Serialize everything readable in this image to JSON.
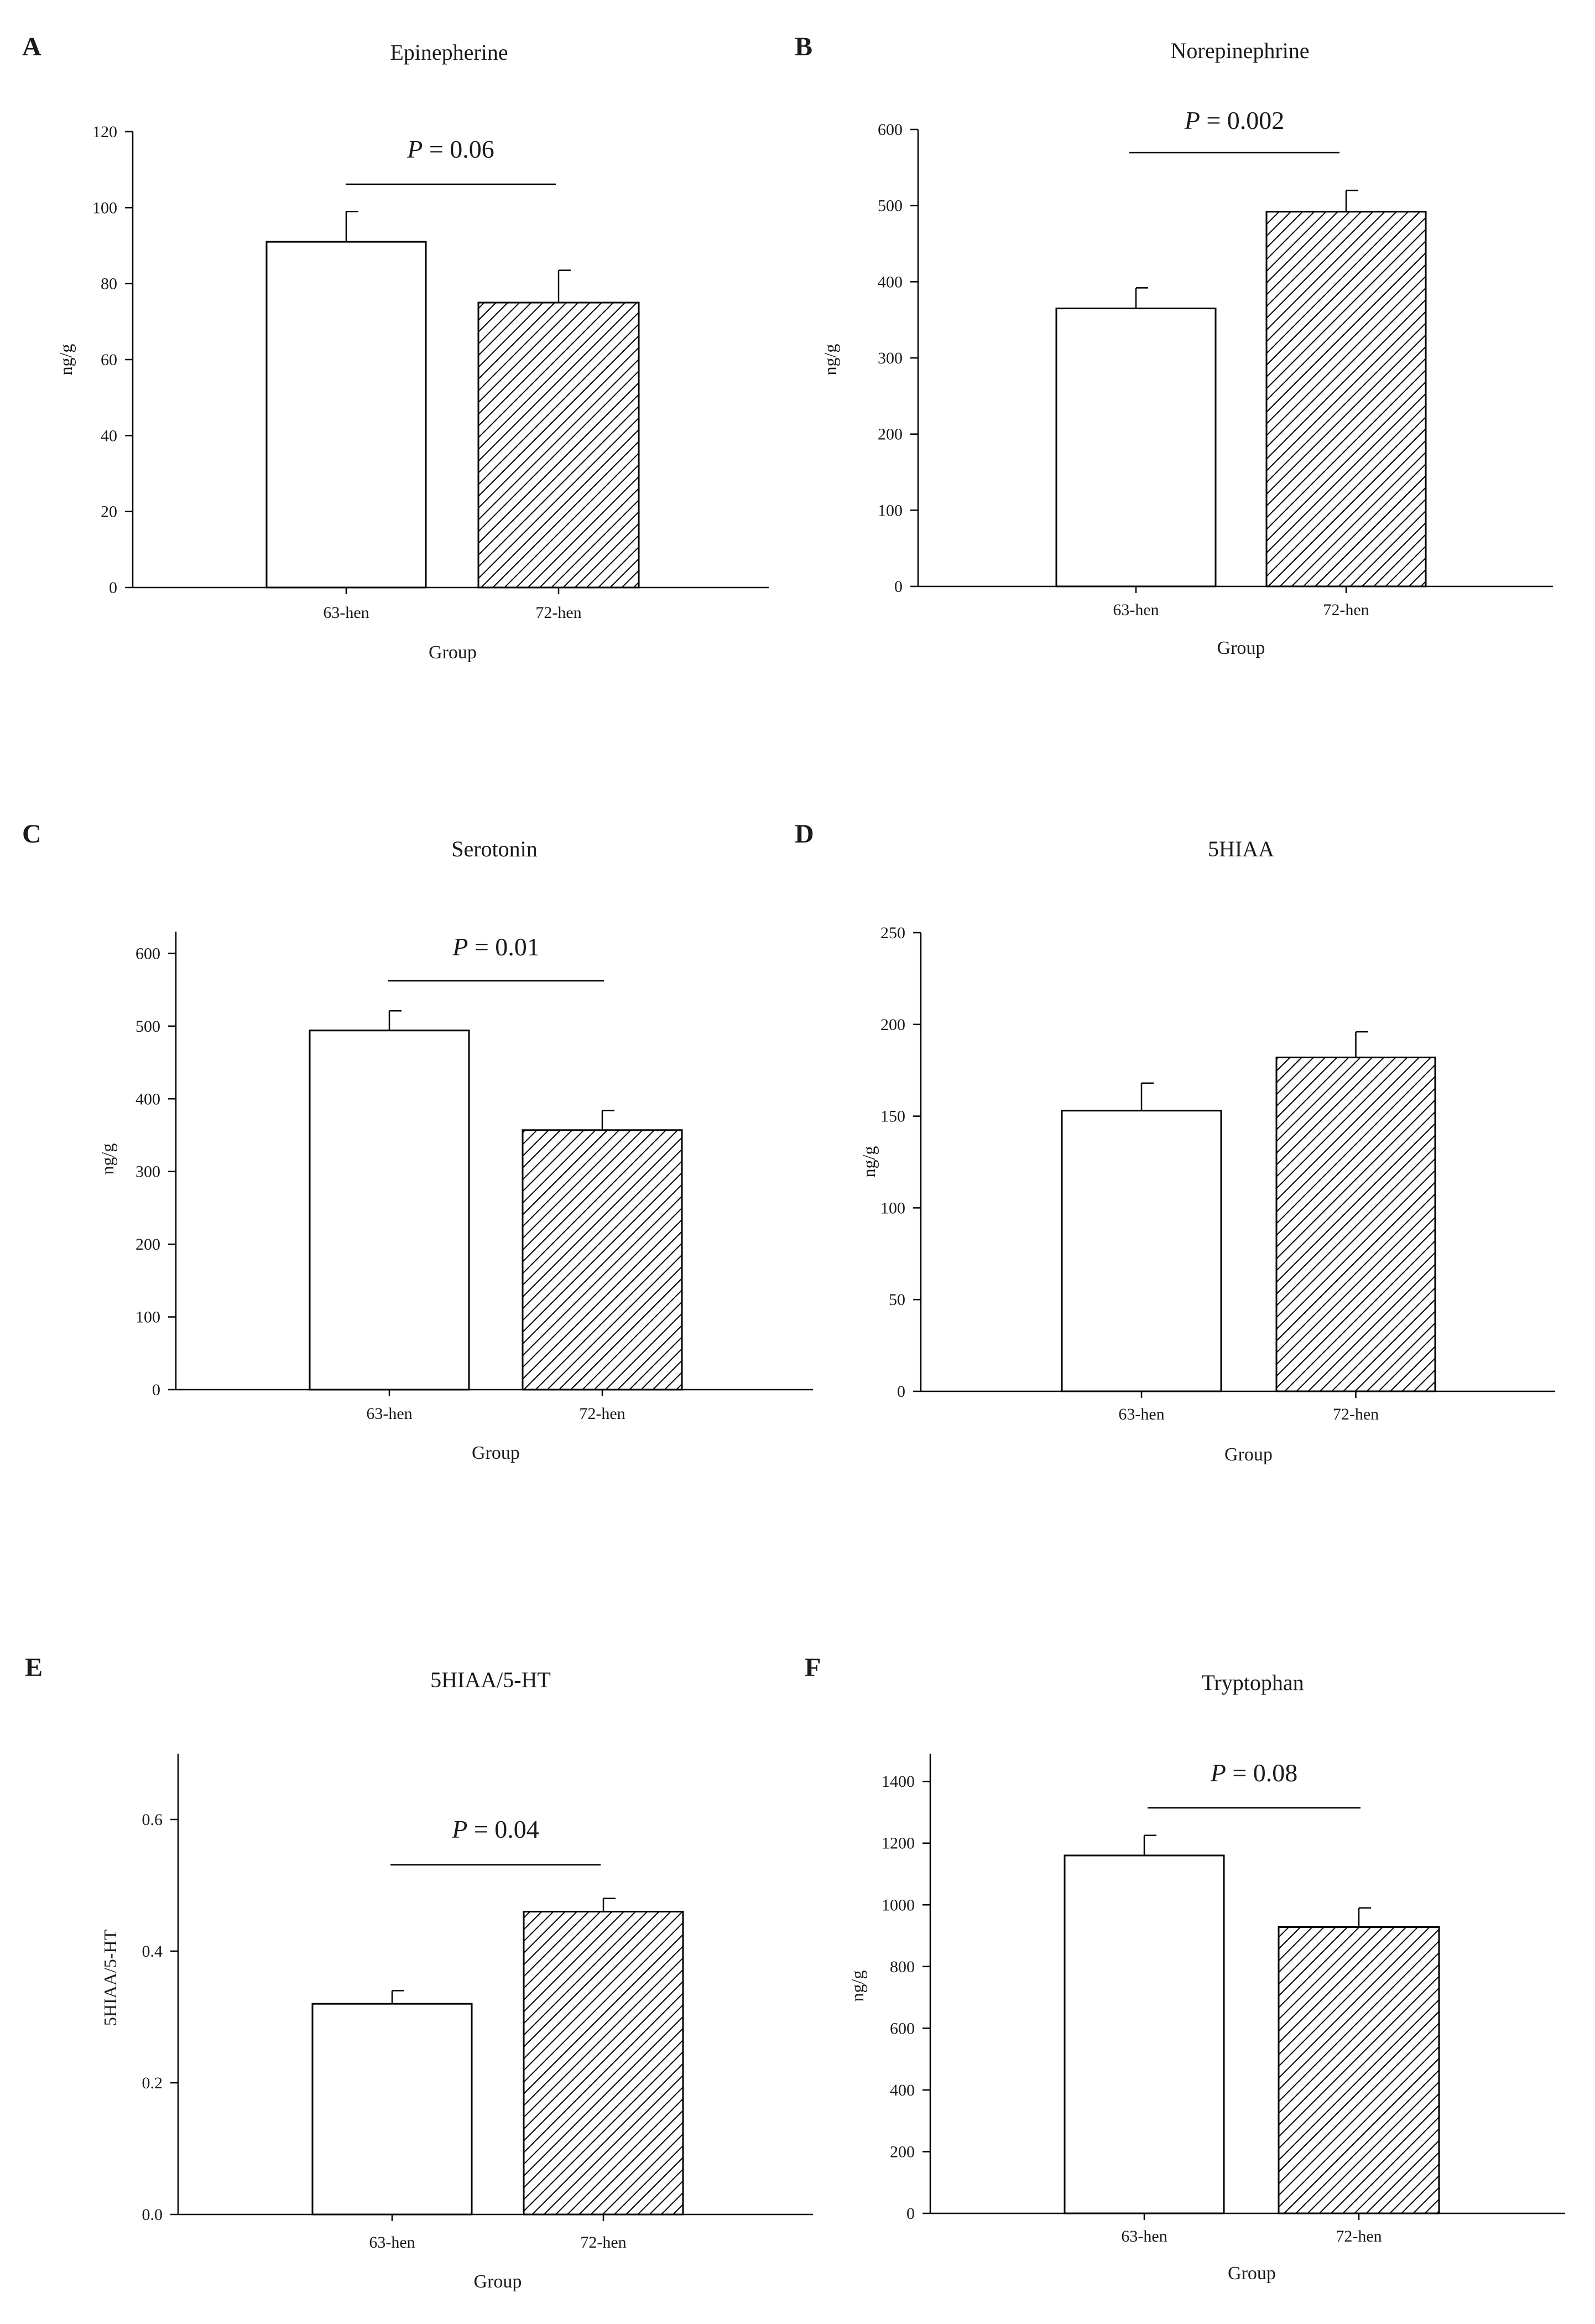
{
  "figure": {
    "colors": {
      "ink": "#000000",
      "background": "#ffffff"
    }
  },
  "chart_data": [
    {
      "panel": "A",
      "type": "bar",
      "title": "Epinepherine",
      "xlabel": "Group",
      "ylabel": "ng/g",
      "categories": [
        "63-hen",
        "72-hen"
      ],
      "values": [
        91,
        75
      ],
      "errors": [
        8,
        8.5
      ],
      "fills": [
        "open",
        "hatched"
      ],
      "ylim": [
        0,
        120
      ],
      "yticks": [
        0,
        20,
        40,
        60,
        80,
        100,
        120
      ],
      "ytick_labels": [
        "0",
        "20",
        "40",
        "60",
        "80",
        "100",
        "120"
      ],
      "significance": {
        "p_label": "P",
        "p_text": "= 0.06"
      }
    },
    {
      "panel": "B",
      "type": "bar",
      "title": "Norepinephrine",
      "xlabel": "Group",
      "ylabel": "ng/g",
      "categories": [
        "63-hen",
        "72-hen"
      ],
      "values": [
        365,
        492
      ],
      "errors": [
        27,
        28
      ],
      "fills": [
        "open",
        "hatched"
      ],
      "ylim": [
        0,
        600
      ],
      "yticks": [
        0,
        100,
        200,
        300,
        400,
        500,
        600
      ],
      "ytick_labels": [
        "0",
        "100",
        "200",
        "300",
        "400",
        "500",
        "600"
      ],
      "significance": {
        "p_label": "P",
        "p_text": "= 0.002"
      }
    },
    {
      "panel": "C",
      "type": "bar",
      "title": "Serotonin",
      "xlabel": "Group",
      "ylabel": "ng/g",
      "categories": [
        "63-hen",
        "72-hen"
      ],
      "values": [
        494,
        357
      ],
      "errors": [
        27,
        27
      ],
      "fills": [
        "open",
        "hatched"
      ],
      "ylim": [
        0,
        630
      ],
      "yticks": [
        0,
        100,
        200,
        300,
        400,
        500,
        600
      ],
      "ytick_labels": [
        "0",
        "100",
        "200",
        "300",
        "400",
        "500",
        "600"
      ],
      "significance": {
        "p_label": "P",
        "p_text": "= 0.01"
      }
    },
    {
      "panel": "D",
      "type": "bar",
      "title": "5HIAA",
      "xlabel": "Group",
      "ylabel": "ng/g",
      "categories": [
        "63-hen",
        "72-hen"
      ],
      "values": [
        153,
        182
      ],
      "errors": [
        15,
        14
      ],
      "fills": [
        "open",
        "hatched"
      ],
      "ylim": [
        0,
        250
      ],
      "yticks": [
        0,
        50,
        100,
        150,
        200,
        250
      ],
      "ytick_labels": [
        "0",
        "50",
        "100",
        "150",
        "200",
        "250"
      ],
      "significance": null
    },
    {
      "panel": "E",
      "type": "bar",
      "title": "5HIAA/5-HT",
      "xlabel": "Group",
      "ylabel": "5HIAA/5-HT",
      "categories": [
        "63-hen",
        "72-hen"
      ],
      "values": [
        0.32,
        0.46
      ],
      "errors": [
        0.02,
        0.02
      ],
      "fills": [
        "open",
        "hatched"
      ],
      "ylim": [
        0,
        0.7
      ],
      "yticks": [
        0,
        0.2,
        0.4,
        0.6
      ],
      "ytick_labels": [
        "0.0",
        "0.2",
        "0.4",
        "0.6"
      ],
      "significance": {
        "p_label": "P",
        "p_text": "= 0.04"
      }
    },
    {
      "panel": "F",
      "type": "bar",
      "title": "Tryptophan",
      "xlabel": "Group",
      "ylabel": "ng/g",
      "categories": [
        "63-hen",
        "72-hen"
      ],
      "values": [
        1160,
        928
      ],
      "errors": [
        65,
        62
      ],
      "fills": [
        "open",
        "hatched"
      ],
      "ylim": [
        0,
        1490
      ],
      "yticks": [
        0,
        200,
        400,
        600,
        800,
        1000,
        1200,
        1400
      ],
      "ytick_labels": [
        "0",
        "200",
        "400",
        "600",
        "800",
        "1000",
        "1200",
        "1400"
      ],
      "significance": {
        "p_label": "P",
        "p_text": "= 0.08"
      }
    }
  ]
}
